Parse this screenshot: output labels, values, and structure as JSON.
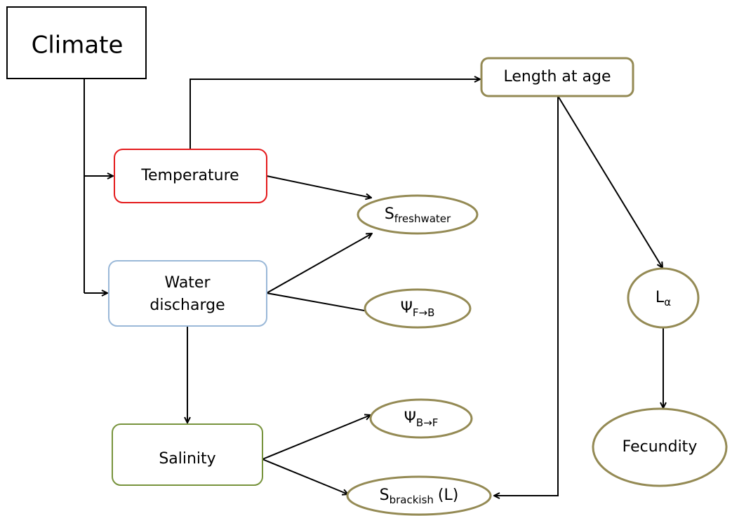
{
  "nodes": [
    {
      "label": "Climate"
    },
    {
      "label": "Temperature"
    },
    {
      "lines": [
        "Water",
        "discharge"
      ]
    },
    {
      "label": "Salinity"
    },
    {
      "label": "Length at age"
    },
    {
      "label": "S",
      "sub": "freshwater"
    },
    {
      "label": "Ψ",
      "sub": "F→B"
    },
    {
      "label": "Ψ",
      "sub": "B→F"
    },
    {
      "label": "S",
      "sub": "brackish",
      "suffix": "(L)"
    },
    {
      "label": "L",
      "sub": "α"
    },
    {
      "label": "Fecundity"
    }
  ]
}
